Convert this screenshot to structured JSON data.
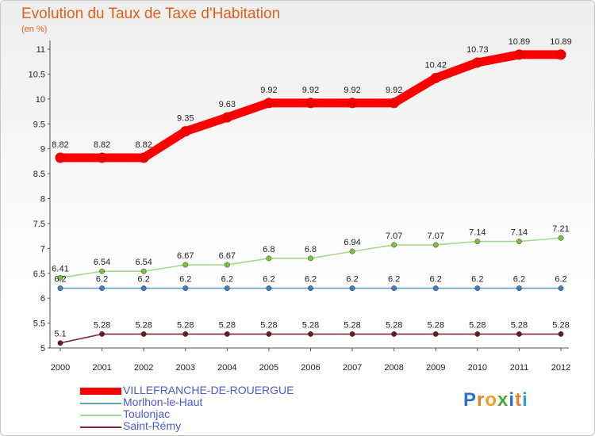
{
  "title": "Evolution du Taux de Taxe d'Habitation",
  "unit": "(en %)",
  "brand": {
    "letters": [
      "P",
      "r",
      "o",
      "x",
      "i",
      "t",
      "i"
    ],
    "colors": [
      "#2b6fd6",
      "#e8821e",
      "#f0a020",
      "#53a537",
      "#2b6fd6",
      "#e8821e",
      "#2b9be0"
    ]
  },
  "chart_data": {
    "type": "line",
    "title": "Evolution du Taux de Taxe d'Habitation",
    "ylabel": "(en %)",
    "xlabel": "",
    "x": [
      "2000",
      "2001",
      "2002",
      "2003",
      "2004",
      "2005",
      "2006",
      "2007",
      "2008",
      "2009",
      "2010",
      "2011",
      "2012"
    ],
    "ylim": [
      5,
      11
    ],
    "yticks": [
      "5",
      "5.5",
      "6",
      "6.5",
      "7",
      "7.5",
      "8",
      "8.5",
      "9",
      "9.5",
      "10",
      "10.5",
      "11"
    ],
    "grid": false,
    "legend_position": "bottom-left",
    "series": [
      {
        "name": "VILLEFRANCHE-DE-ROUERGUE",
        "color": "#ff0000",
        "marker_color": "#ee0000",
        "values": [
          8.82,
          8.82,
          8.82,
          9.35,
          9.63,
          9.92,
          9.92,
          9.92,
          9.92,
          10.42,
          10.73,
          10.89,
          10.89
        ],
        "labels": [
          "8.82",
          "8.82",
          "8.82",
          "9.35",
          "9.63",
          "9.92",
          "9.92",
          "9.92",
          "9.92",
          "10.42",
          "10.73",
          "10.89",
          "10.89"
        ]
      },
      {
        "name": "Morlhon-le-Haut",
        "color": "#6a9cc8",
        "marker_color": "#3f7fc0",
        "values": [
          6.2,
          6.2,
          6.2,
          6.2,
          6.2,
          6.2,
          6.2,
          6.2,
          6.2,
          6.2,
          6.2,
          6.2,
          6.2
        ],
        "labels": [
          "6.2",
          "6.2",
          "6.2",
          "6.2",
          "6.2",
          "6.2",
          "6.2",
          "6.2",
          "6.2",
          "6.2",
          "6.2",
          "6.2",
          "6.2"
        ]
      },
      {
        "name": "Toulonjac",
        "color": "#a6d98a",
        "marker_color": "#7cc242",
        "values": [
          6.41,
          6.54,
          6.54,
          6.67,
          6.67,
          6.8,
          6.8,
          6.94,
          7.07,
          7.07,
          7.14,
          7.14,
          7.21
        ],
        "labels": [
          "6.41",
          "6.54",
          "6.54",
          "6.67",
          "6.67",
          "6.8",
          "6.8",
          "6.94",
          "7.07",
          "7.07",
          "7.14",
          "7.14",
          "7.21"
        ]
      },
      {
        "name": "Saint-Rémy",
        "color": "#7a2d34",
        "marker_color": "#6a1a22",
        "values": [
          5.1,
          5.28,
          5.28,
          5.28,
          5.28,
          5.28,
          5.28,
          5.28,
          5.28,
          5.28,
          5.28,
          5.28,
          5.28
        ],
        "labels": [
          "5.1",
          "5.28",
          "5.28",
          "5.28",
          "5.28",
          "5.28",
          "5.28",
          "5.28",
          "5.28",
          "5.28",
          "5.28",
          "5.28",
          "5.28"
        ]
      }
    ]
  }
}
